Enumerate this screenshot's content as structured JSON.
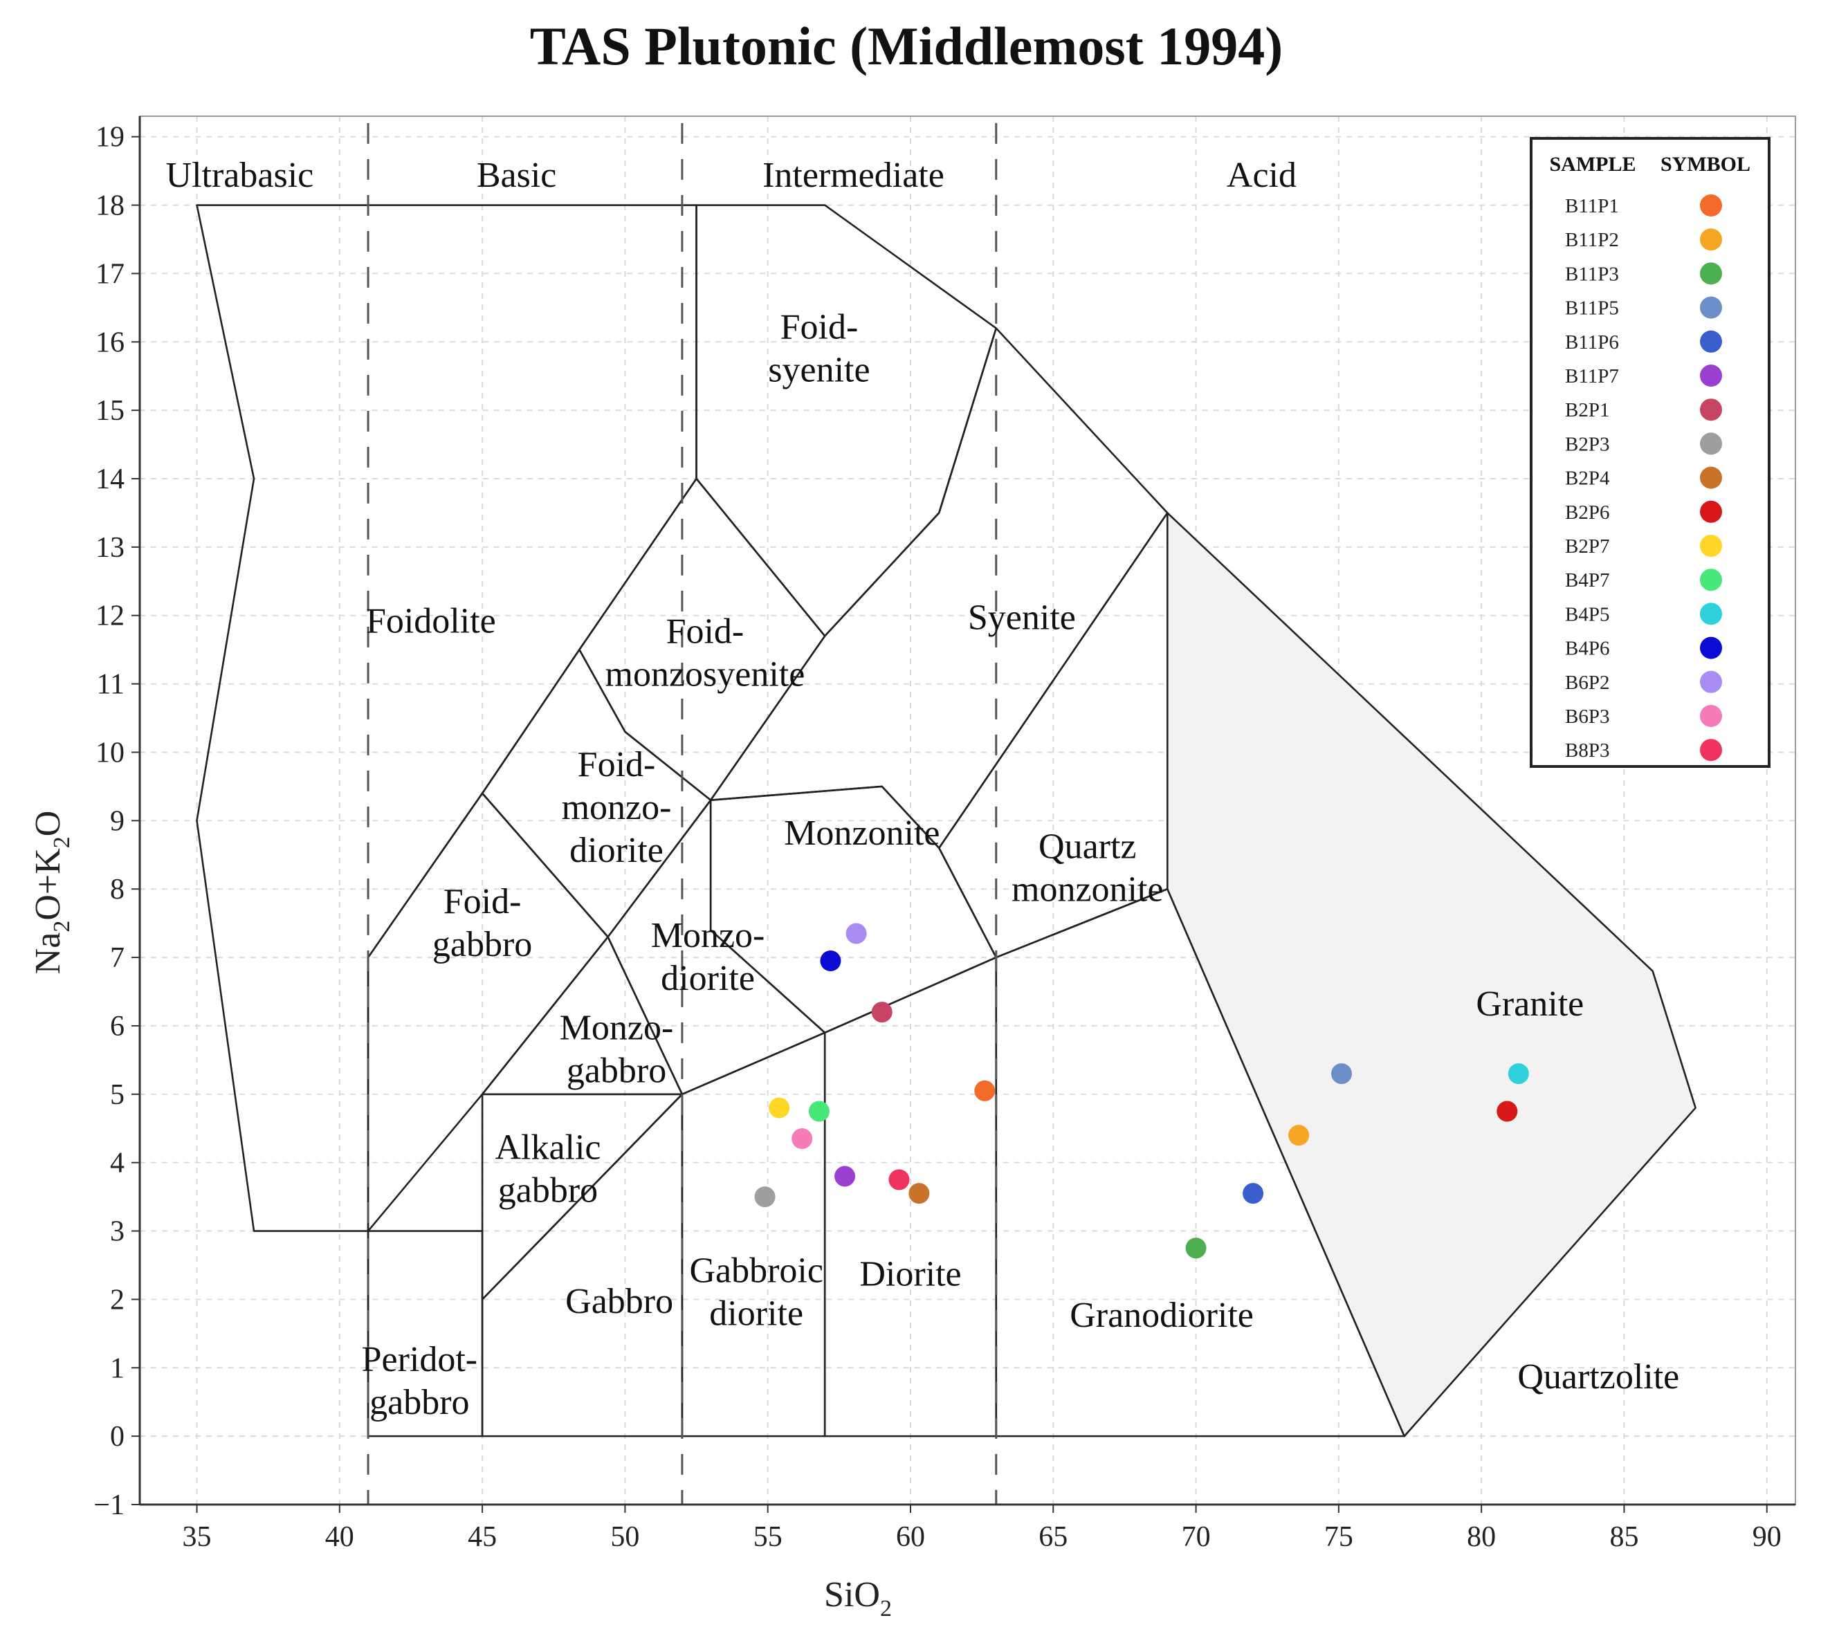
{
  "chart_data": {
    "type": "scatter",
    "title": "TAS Plutonic (Middlemost 1994)",
    "xlabel": "SiO",
    "xlabel_sub": "2",
    "ylabel_parts": [
      "Na",
      "2",
      "O+K",
      "2",
      "O"
    ],
    "xlim": [
      33,
      91
    ],
    "ylim": [
      -1,
      19.3
    ],
    "xticks": [
      35,
      40,
      45,
      50,
      55,
      60,
      65,
      70,
      75,
      80,
      85,
      90
    ],
    "yticks": [
      -1,
      0,
      1,
      2,
      3,
      4,
      5,
      6,
      7,
      8,
      9,
      10,
      11,
      12,
      13,
      14,
      15,
      16,
      17,
      18,
      19
    ],
    "grid": true,
    "category_separators": [
      41,
      52,
      63
    ],
    "categories": [
      {
        "label": "Ultrabasic",
        "x": 36.5,
        "y": 18.45
      },
      {
        "label": "Basic",
        "x": 46.2,
        "y": 18.45
      },
      {
        "label": "Intermediate",
        "x": 58,
        "y": 18.45
      },
      {
        "label": "Acid",
        "x": 72.3,
        "y": 18.45
      }
    ],
    "fields": [
      {
        "name": "Foidolite",
        "points": [
          [
            41,
            0
          ],
          [
            41,
            7
          ],
          [
            45,
            9.4
          ],
          [
            48.4,
            11.5
          ],
          [
            52.5,
            14
          ],
          [
            52.5,
            18
          ],
          [
            35,
            18
          ],
          [
            37,
            14
          ],
          [
            35,
            9
          ],
          [
            37,
            3
          ],
          [
            41,
            3
          ]
        ]
      },
      {
        "name": "Foid-syenite",
        "points": [
          [
            52.5,
            14
          ],
          [
            57,
            11.7
          ],
          [
            61,
            13.5
          ],
          [
            63,
            16.2
          ],
          [
            57,
            18
          ],
          [
            52.5,
            18
          ]
        ]
      },
      {
        "name": "Foid-monzosyenite",
        "points": [
          [
            48.4,
            11.5
          ],
          [
            52.5,
            14
          ],
          [
            57,
            11.7
          ],
          [
            53,
            9.3
          ],
          [
            50,
            10.3
          ]
        ]
      },
      {
        "name": "Foid-monzodiorite",
        "points": [
          [
            45,
            9.4
          ],
          [
            48.4,
            11.5
          ],
          [
            50,
            10.3
          ],
          [
            53,
            9.3
          ],
          [
            49.4,
            7.3
          ]
        ]
      },
      {
        "name": "Foid-gabbro",
        "points": [
          [
            41,
            7
          ],
          [
            45,
            9.4
          ],
          [
            49.4,
            7.3
          ],
          [
            45,
            5
          ],
          [
            41,
            3
          ]
        ]
      },
      {
        "name": "Syenite",
        "points": [
          [
            57,
            11.7
          ],
          [
            61,
            13.5
          ],
          [
            63,
            16.2
          ],
          [
            69,
            13.5
          ],
          [
            61,
            8.6
          ],
          [
            59,
            9.5
          ],
          [
            53,
            9.3
          ]
        ]
      },
      {
        "name": "Monzonite",
        "points": [
          [
            53,
            9.3
          ],
          [
            59,
            9.5
          ],
          [
            61,
            8.6
          ],
          [
            63,
            7
          ],
          [
            57,
            5.9
          ],
          [
            53,
            7.4
          ]
        ]
      },
      {
        "name": "Monzodiorite",
        "points": [
          [
            49.4,
            7.3
          ],
          [
            53,
            9.3
          ],
          [
            53,
            7.4
          ],
          [
            57,
            5.9
          ],
          [
            52,
            5
          ]
        ]
      },
      {
        "name": "Monzogabbro",
        "points": [
          [
            45,
            5
          ],
          [
            49.4,
            7.3
          ],
          [
            52,
            5
          ]
        ]
      },
      {
        "name": "Alkalic gabbro",
        "points": [
          [
            45,
            2
          ],
          [
            45,
            5
          ],
          [
            52,
            5
          ]
        ]
      },
      {
        "name": "Gabbro",
        "points": [
          [
            45,
            0
          ],
          [
            45,
            2
          ],
          [
            52,
            5
          ],
          [
            52,
            0
          ]
        ]
      },
      {
        "name": "Peridotgabbro",
        "points": [
          [
            41,
            0
          ],
          [
            41,
            3
          ],
          [
            45,
            3
          ],
          [
            45,
            0
          ]
        ]
      },
      {
        "name": "Gabbroic diorite",
        "points": [
          [
            52,
            0
          ],
          [
            52,
            5
          ],
          [
            57,
            5.9
          ],
          [
            57,
            0
          ]
        ]
      },
      {
        "name": "Diorite",
        "points": [
          [
            57,
            0
          ],
          [
            57,
            5.9
          ],
          [
            63,
            7
          ],
          [
            63,
            0
          ]
        ]
      },
      {
        "name": "Quartz monzonite",
        "points": [
          [
            61,
            8.6
          ],
          [
            69,
            13.5
          ],
          [
            69,
            8
          ],
          [
            63,
            7
          ]
        ]
      },
      {
        "name": "Granodiorite",
        "points": [
          [
            63,
            0
          ],
          [
            63,
            7
          ],
          [
            69,
            8
          ],
          [
            77.3,
            0
          ]
        ]
      },
      {
        "name": "Granite",
        "points": [
          [
            69,
            8
          ],
          [
            69,
            13.5
          ],
          [
            86,
            6.8
          ],
          [
            87.5,
            4.8
          ],
          [
            77.3,
            0
          ]
        ]
      }
    ],
    "region_labels": [
      {
        "lines": [
          "Foidolite"
        ],
        "x": 43.2,
        "y": 11.75
      },
      {
        "lines": [
          "Foid-",
          "syenite"
        ],
        "x": 56.8,
        "y": 16.05
      },
      {
        "lines": [
          "Foid-",
          "monzosyenite"
        ],
        "x": 52.8,
        "y": 11.6
      },
      {
        "lines": [
          "Foid-",
          "monzo-",
          "diorite"
        ],
        "x": 49.7,
        "y": 9.65
      },
      {
        "lines": [
          "Foid-",
          "gabbro"
        ],
        "x": 45,
        "y": 7.65
      },
      {
        "lines": [
          "Syenite"
        ],
        "x": 63.9,
        "y": 11.8
      },
      {
        "lines": [
          "Monzonite"
        ],
        "x": 58.3,
        "y": 8.65
      },
      {
        "lines": [
          "Monzo-",
          "diorite"
        ],
        "x": 52.9,
        "y": 7.15
      },
      {
        "lines": [
          "Monzo-",
          "gabbro"
        ],
        "x": 49.7,
        "y": 5.8
      },
      {
        "lines": [
          "Alkalic",
          "gabbro"
        ],
        "x": 47.3,
        "y": 4.05
      },
      {
        "lines": [
          "Gabbro"
        ],
        "x": 49.8,
        "y": 1.8
      },
      {
        "lines": [
          "Peridot-",
          "gabbro"
        ],
        "x": 42.8,
        "y": 0.95
      },
      {
        "lines": [
          "Gabbroic",
          "diorite"
        ],
        "x": 54.6,
        "y": 2.25
      },
      {
        "lines": [
          "Diorite"
        ],
        "x": 60,
        "y": 2.2
      },
      {
        "lines": [
          "Quartz",
          "monzonite"
        ],
        "x": 66.2,
        "y": 8.45
      },
      {
        "lines": [
          "Granodiorite"
        ],
        "x": 68.8,
        "y": 1.6
      },
      {
        "lines": [
          "Granite"
        ],
        "x": 81.7,
        "y": 6.15
      },
      {
        "lines": [
          "Quartzolite"
        ],
        "x": 84.1,
        "y": 0.7
      }
    ],
    "legend": {
      "headers": [
        "SAMPLE",
        "SYMBOL"
      ],
      "placement": "top-right"
    },
    "series": [
      {
        "name": "B11P1",
        "color": "#f26b2a",
        "x": 62.6,
        "y": 5.05
      },
      {
        "name": "B11P2",
        "color": "#f5a623",
        "x": 73.6,
        "y": 4.4
      },
      {
        "name": "B11P3",
        "color": "#4caf50",
        "x": 70,
        "y": 2.75
      },
      {
        "name": "B11P5",
        "color": "#6d8fc9",
        "x": 75.1,
        "y": 5.3
      },
      {
        "name": "B11P6",
        "color": "#3a5fcd",
        "x": 72,
        "y": 3.55
      },
      {
        "name": "B11P7",
        "color": "#9b3fd1",
        "x": 57.7,
        "y": 3.8
      },
      {
        "name": "B2P1",
        "color": "#c74465",
        "x": 59,
        "y": 6.2
      },
      {
        "name": "B2P3",
        "color": "#9e9e9e",
        "x": 54.9,
        "y": 3.5
      },
      {
        "name": "B2P4",
        "color": "#c8722a",
        "x": 60.3,
        "y": 3.55
      },
      {
        "name": "B2P6",
        "color": "#d81818",
        "x": 80.9,
        "y": 4.75
      },
      {
        "name": "B2P7",
        "color": "#ffd626",
        "x": 55.4,
        "y": 4.8
      },
      {
        "name": "B4P7",
        "color": "#47e87a",
        "x": 56.8,
        "y": 4.75
      },
      {
        "name": "B4P5",
        "color": "#2fd0dd",
        "x": 81.3,
        "y": 5.3
      },
      {
        "name": "B4P6",
        "color": "#0b0bd4",
        "x": 57.2,
        "y": 6.95
      },
      {
        "name": "B6P2",
        "color": "#a98bf2",
        "x": 58.1,
        "y": 7.35
      },
      {
        "name": "B6P3",
        "color": "#f57bb9",
        "x": 56.2,
        "y": 4.35
      },
      {
        "name": "B8P3",
        "color": "#f0325e",
        "x": 59.6,
        "y": 3.75
      }
    ]
  }
}
